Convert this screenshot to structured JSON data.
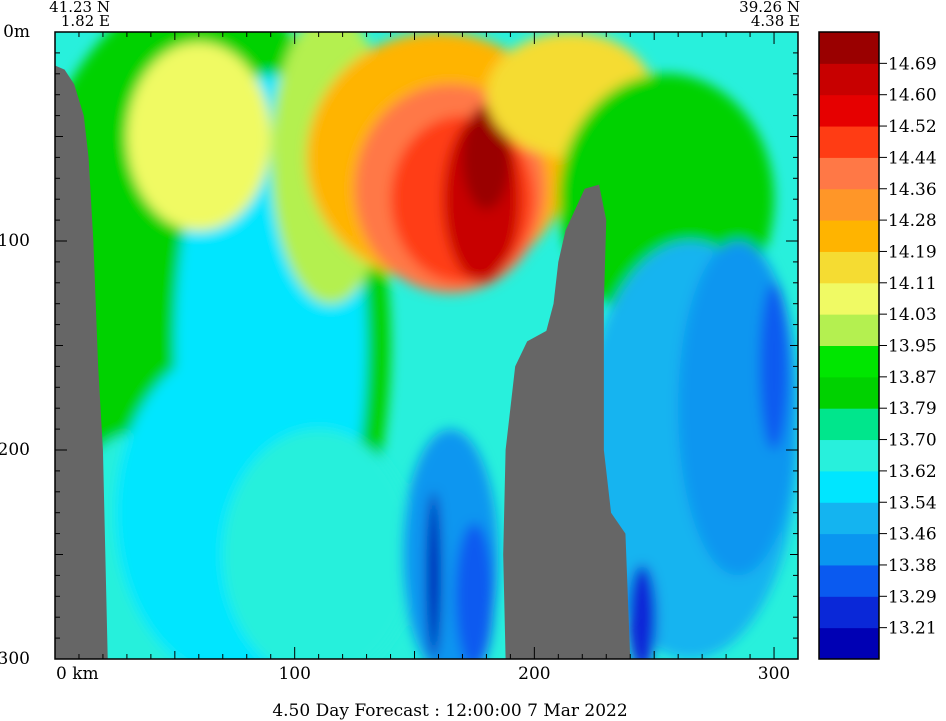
{
  "chart_data": {
    "type": "heatmap",
    "title": "4.50 Day Forecast : 12:00:00   7 Mar 2022",
    "start_coord": {
      "lat": "41.23 N",
      "lon": "1.82 E"
    },
    "end_coord": {
      "lat": "39.26 N",
      "lon": "4.38 E"
    },
    "x_axis": {
      "unit": "km",
      "range": [
        0,
        310
      ],
      "ticks": [
        0,
        100,
        200,
        300
      ],
      "tick_labels": [
        "0  km",
        "100",
        "200",
        "300"
      ]
    },
    "y_axis": {
      "unit": "m",
      "range": [
        0,
        300
      ],
      "inverted": true,
      "ticks": [
        0,
        100,
        200,
        300
      ],
      "tick_labels": [
        "0m",
        "100",
        "200",
        "300"
      ]
    },
    "colorbar": {
      "levels": [
        13.21,
        13.29,
        13.38,
        13.46,
        13.54,
        13.62,
        13.7,
        13.79,
        13.87,
        13.95,
        14.03,
        14.11,
        14.19,
        14.28,
        14.36,
        14.44,
        14.52,
        14.6,
        14.69
      ],
      "labels": [
        "13.21",
        "13.29",
        "13.38",
        "13.46",
        "13.54",
        "13.62",
        "13.70",
        "13.79",
        "13.87",
        "13.95",
        "14.03",
        "14.11",
        "14.19",
        "14.28",
        "14.36",
        "14.44",
        "14.52",
        "14.60",
        "14.69"
      ],
      "colors": [
        "#0000b4",
        "#0a28d8",
        "#0a5af0",
        "#0a96f0",
        "#14b4f0",
        "#00e6ff",
        "#28f0dc",
        "#00e68c",
        "#00d200",
        "#00e600",
        "#b4f050",
        "#f0fa64",
        "#f5dc32",
        "#ffb400",
        "#ff9628",
        "#ff7846",
        "#ff3c14",
        "#e60000",
        "#c80000",
        "#9a0000"
      ]
    },
    "seabed": [
      [
        0,
        16
      ],
      [
        4,
        18
      ],
      [
        8,
        25
      ],
      [
        12,
        40
      ],
      [
        14,
        60
      ],
      [
        16,
        100
      ],
      [
        18,
        160
      ],
      [
        20,
        200
      ],
      [
        22,
        300
      ],
      [
        0,
        300
      ]
    ],
    "seabed2": [
      [
        188,
        300
      ],
      [
        187,
        250
      ],
      [
        188,
        200
      ],
      [
        190,
        180
      ],
      [
        192,
        160
      ],
      [
        197,
        148
      ],
      [
        205,
        143
      ],
      [
        208,
        130
      ],
      [
        210,
        110
      ],
      [
        213,
        95
      ],
      [
        217,
        85
      ],
      [
        221,
        75
      ],
      [
        227,
        73
      ],
      [
        230,
        90
      ],
      [
        229,
        130
      ],
      [
        229,
        160
      ],
      [
        229,
        200
      ],
      [
        232,
        230
      ],
      [
        238,
        240
      ],
      [
        240,
        300
      ]
    ],
    "blobs": [
      {
        "x": 60,
        "y": 150,
        "rx": 80,
        "ry": 170,
        "level": 8
      },
      {
        "x": 40,
        "y": 250,
        "rx": 40,
        "ry": 60,
        "level": 6
      },
      {
        "x": 75,
        "y": 230,
        "rx": 50,
        "ry": 80,
        "level": 5
      },
      {
        "x": 90,
        "y": 150,
        "rx": 40,
        "ry": 130,
        "level": 5
      },
      {
        "x": 110,
        "y": 250,
        "rx": 40,
        "ry": 60,
        "level": 6
      },
      {
        "x": 60,
        "y": 50,
        "rx": 30,
        "ry": 45,
        "level": 11
      },
      {
        "x": 115,
        "y": 60,
        "rx": 25,
        "ry": 70,
        "level": 10
      },
      {
        "x": 160,
        "y": 60,
        "rx": 55,
        "ry": 60,
        "level": 13
      },
      {
        "x": 165,
        "y": 75,
        "rx": 40,
        "ry": 50,
        "level": 15
      },
      {
        "x": 170,
        "y": 80,
        "rx": 30,
        "ry": 40,
        "level": 16
      },
      {
        "x": 178,
        "y": 80,
        "rx": 16,
        "ry": 40,
        "level": 18
      },
      {
        "x": 180,
        "y": 60,
        "rx": 10,
        "ry": 25,
        "level": 19
      },
      {
        "x": 215,
        "y": 30,
        "rx": 35,
        "ry": 30,
        "level": 12
      },
      {
        "x": 255,
        "y": 80,
        "rx": 45,
        "ry": 60,
        "level": 8
      },
      {
        "x": 265,
        "y": 200,
        "rx": 45,
        "ry": 100,
        "level": 4
      },
      {
        "x": 285,
        "y": 180,
        "rx": 25,
        "ry": 80,
        "level": 3
      },
      {
        "x": 300,
        "y": 160,
        "rx": 6,
        "ry": 40,
        "level": 2
      },
      {
        "x": 165,
        "y": 250,
        "rx": 20,
        "ry": 60,
        "level": 3
      },
      {
        "x": 158,
        "y": 260,
        "rx": 3,
        "ry": 40,
        "level": 0
      },
      {
        "x": 175,
        "y": 270,
        "rx": 8,
        "ry": 35,
        "level": 2
      },
      {
        "x": 245,
        "y": 280,
        "rx": 6,
        "ry": 25,
        "level": 1
      }
    ]
  }
}
